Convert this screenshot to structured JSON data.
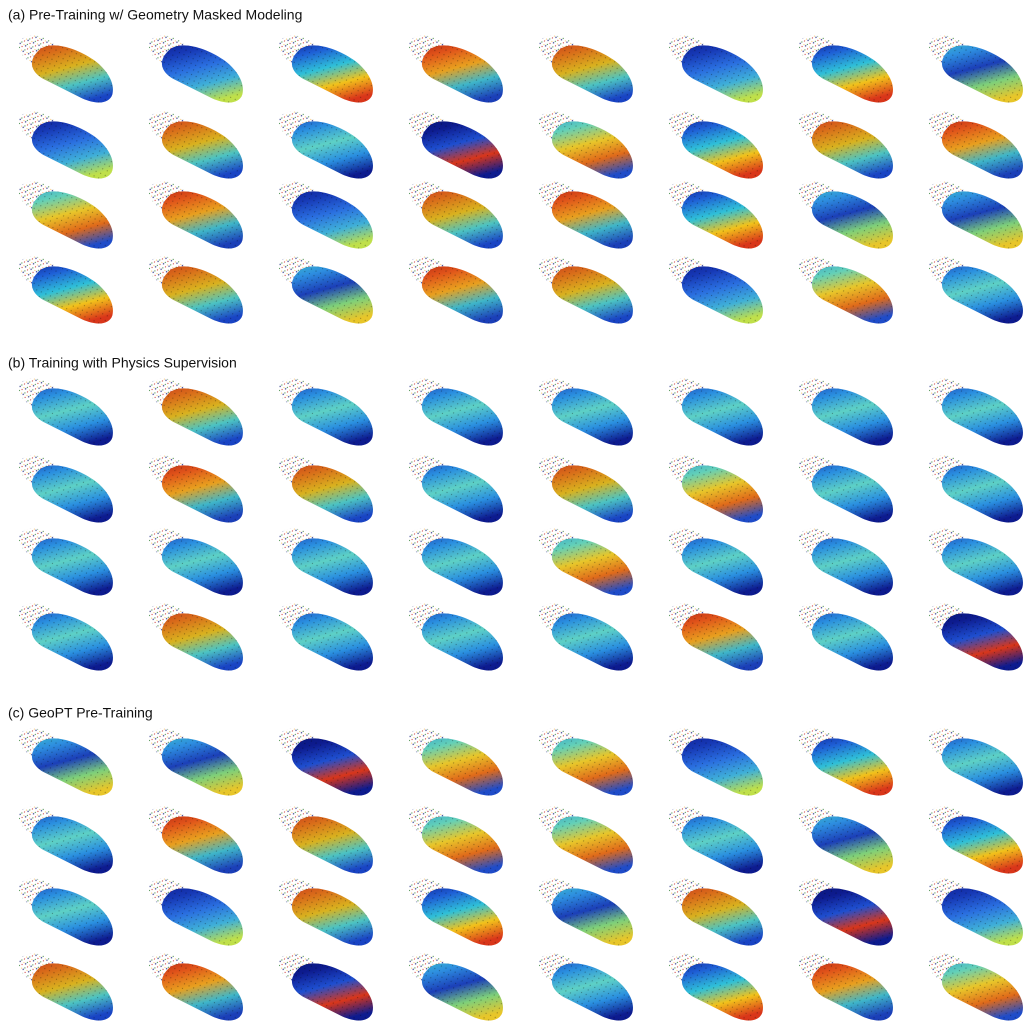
{
  "panels": [
    {
      "title": "(a) Pre-Training w/ Geometry Masked Modeling"
    },
    {
      "title": "(b) Training with Physics Supervision"
    },
    {
      "title": "(c) GeoPT Pre-Training"
    }
  ]
}
